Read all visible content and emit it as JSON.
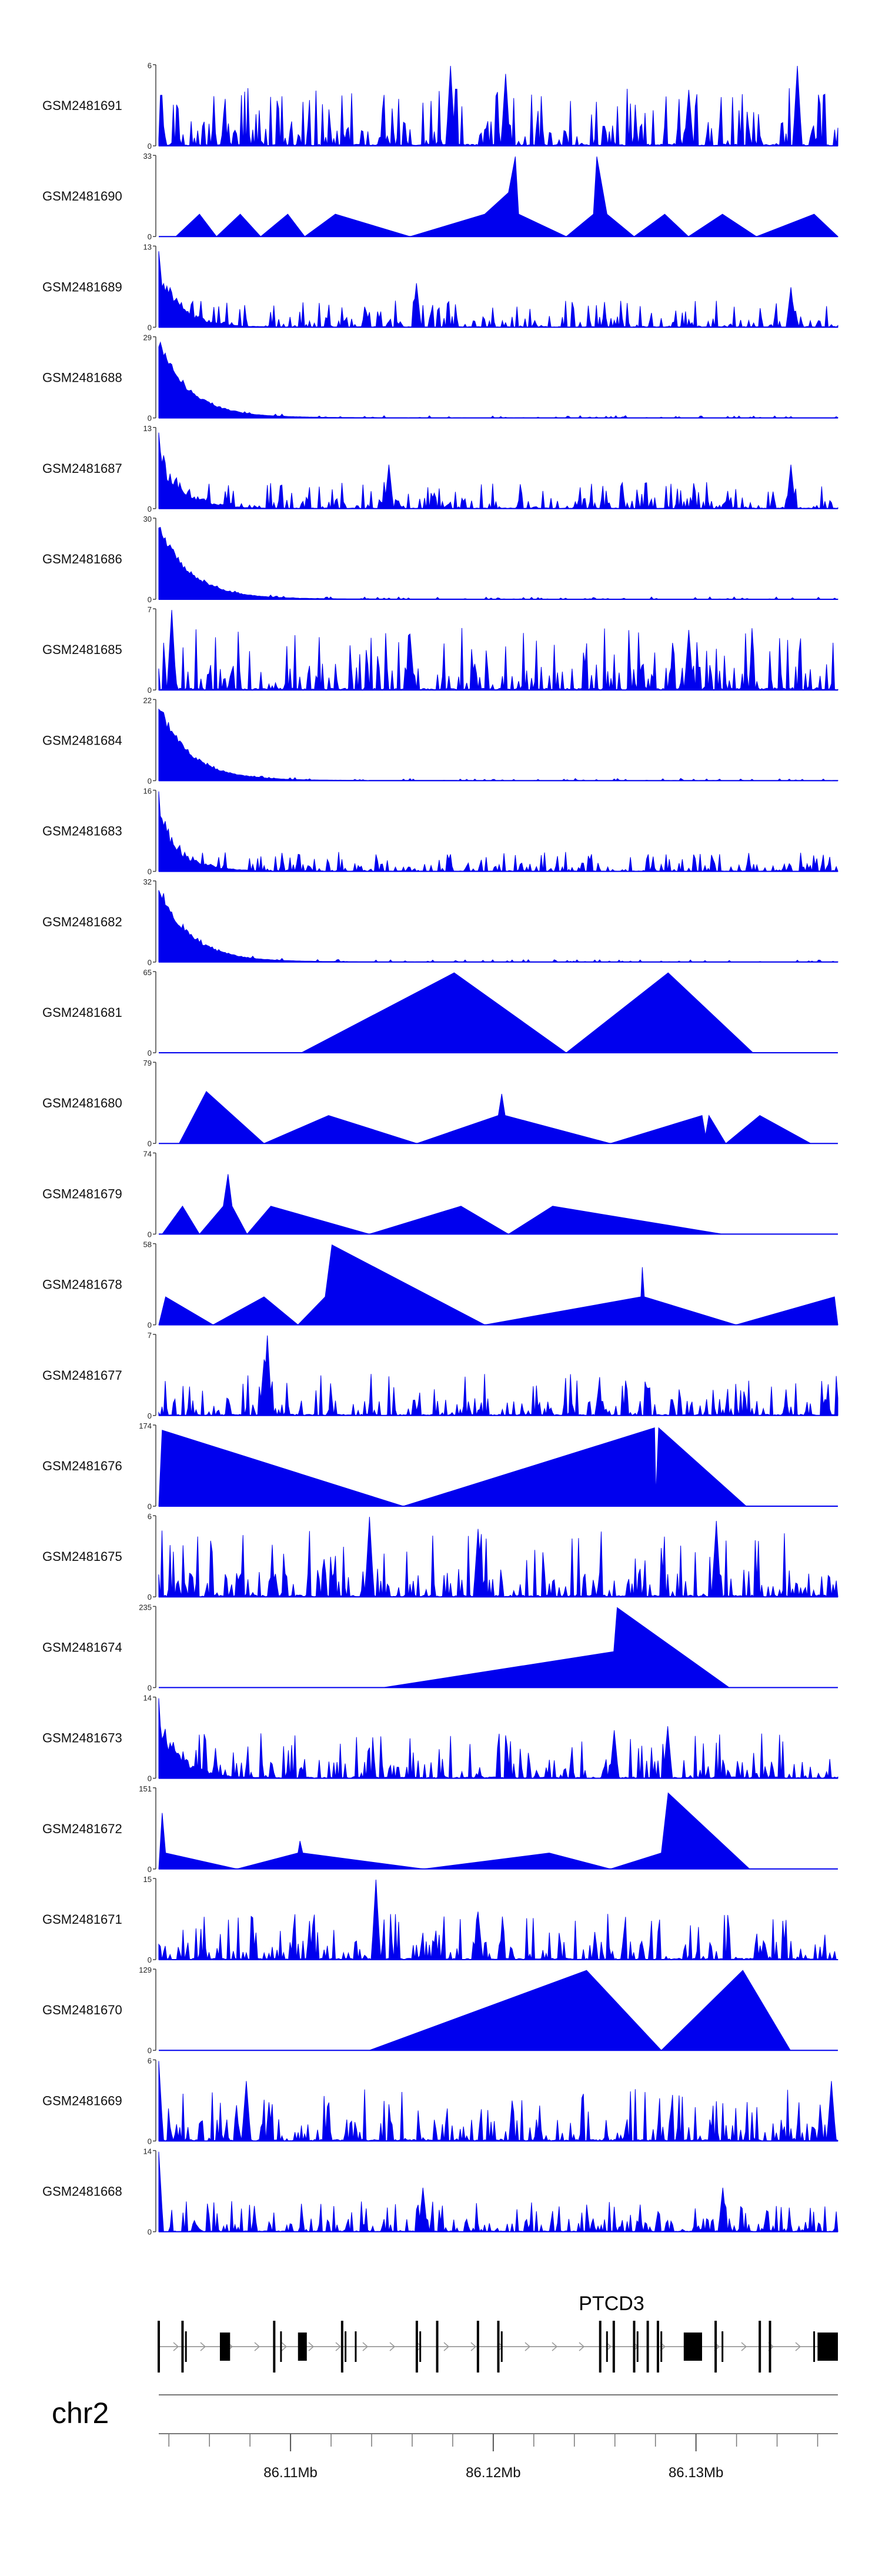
{
  "chart_data": {
    "type": "area",
    "title": "",
    "fill_color": "#0000ee",
    "chromosome": "chr2",
    "gene": "PTCD3",
    "xlim": [
      86.1035,
      86.137
    ],
    "x_unit": "Mb",
    "x_ticks": [
      {
        "value": 86.11,
        "label": "86.11Mb"
      },
      {
        "value": 86.12,
        "label": "86.12Mb"
      },
      {
        "value": 86.13,
        "label": "86.13Mb"
      }
    ],
    "tracks": [
      {
        "name": "GSM2481691",
        "ymax": 6,
        "kind": "dense",
        "seed": 11,
        "base": 0.28,
        "skew": 0.0,
        "mode": "peaks",
        "spikes": [
          [
            0.43,
            1.0
          ],
          [
            0.51,
            0.9
          ],
          [
            0.94,
            1.0
          ],
          [
            0.78,
            0.7
          ]
        ]
      },
      {
        "name": "GSM2481690",
        "ymax": 33,
        "kind": "tri",
        "points": [
          [
            0.025,
            0
          ],
          [
            0.06,
            0.28
          ],
          [
            0.085,
            0
          ],
          [
            0.12,
            0.28
          ],
          [
            0.15,
            0
          ],
          [
            0.19,
            0.28
          ],
          [
            0.215,
            0
          ],
          [
            0.26,
            0.28
          ],
          [
            0.37,
            0
          ],
          [
            0.48,
            0.28
          ],
          [
            0.515,
            0.55
          ],
          [
            0.525,
            1.0
          ],
          [
            0.53,
            0.28
          ],
          [
            0.6,
            0
          ],
          [
            0.64,
            0.28
          ],
          [
            0.645,
            1.0
          ],
          [
            0.66,
            0.28
          ],
          [
            0.7,
            0
          ],
          [
            0.745,
            0.28
          ],
          [
            0.78,
            0
          ],
          [
            0.83,
            0.28
          ],
          [
            0.88,
            0
          ],
          [
            0.965,
            0.28
          ],
          [
            1.0,
            0
          ]
        ]
      },
      {
        "name": "GSM2481689",
        "ymax": 13,
        "kind": "dense",
        "seed": 23,
        "base": 0.16,
        "skew": 0.7,
        "mode": "mixed",
        "spikes": [
          [
            0.0,
            0.95
          ],
          [
            0.38,
            0.55
          ],
          [
            0.93,
            0.5
          ]
        ]
      },
      {
        "name": "GSM2481688",
        "ymax": 29,
        "kind": "dense",
        "seed": 31,
        "base": 0.05,
        "skew": 1.0,
        "mode": "decay",
        "spikes": []
      },
      {
        "name": "GSM2481687",
        "ymax": 13,
        "kind": "dense",
        "seed": 47,
        "base": 0.16,
        "skew": 0.7,
        "mode": "mixed",
        "spikes": [
          [
            0.0,
            0.95
          ],
          [
            0.34,
            0.55
          ],
          [
            0.93,
            0.55
          ]
        ]
      },
      {
        "name": "GSM2481686",
        "ymax": 30,
        "kind": "dense",
        "seed": 53,
        "base": 0.05,
        "skew": 1.0,
        "mode": "decay",
        "spikes": []
      },
      {
        "name": "GSM2481685",
        "ymax": 7,
        "kind": "dense",
        "seed": 61,
        "base": 0.3,
        "skew": 0.0,
        "mode": "peaks",
        "spikes": [
          [
            0.02,
            1.0
          ],
          [
            0.37,
            0.7
          ],
          [
            0.78,
            0.75
          ]
        ]
      },
      {
        "name": "GSM2481684",
        "ymax": 22,
        "kind": "dense",
        "seed": 71,
        "base": 0.03,
        "skew": 1.0,
        "mode": "decay",
        "spikes": []
      },
      {
        "name": "GSM2481683",
        "ymax": 16,
        "kind": "dense",
        "seed": 83,
        "base": 0.12,
        "skew": 0.8,
        "mode": "mixed",
        "spikes": [
          [
            0.0,
            1.0
          ]
        ]
      },
      {
        "name": "GSM2481682",
        "ymax": 32,
        "kind": "dense",
        "seed": 97,
        "base": 0.04,
        "skew": 1.0,
        "mode": "decay",
        "spikes": []
      },
      {
        "name": "GSM2481681",
        "ymax": 65,
        "kind": "tri",
        "points": [
          [
            0.21,
            0
          ],
          [
            0.435,
            1.0
          ],
          [
            0.6,
            0
          ],
          [
            0.75,
            1.0
          ],
          [
            0.875,
            0
          ]
        ]
      },
      {
        "name": "GSM2481680",
        "ymax": 79,
        "kind": "tri",
        "points": [
          [
            0.03,
            0
          ],
          [
            0.07,
            0.65
          ],
          [
            0.155,
            0
          ],
          [
            0.25,
            0.35
          ],
          [
            0.38,
            0
          ],
          [
            0.5,
            0.35
          ],
          [
            0.505,
            0.62
          ],
          [
            0.51,
            0.35
          ],
          [
            0.665,
            0
          ],
          [
            0.8,
            0.35
          ],
          [
            0.805,
            0.1
          ],
          [
            0.81,
            0.35
          ],
          [
            0.835,
            0
          ],
          [
            0.885,
            0.35
          ],
          [
            0.96,
            0
          ]
        ]
      },
      {
        "name": "GSM2481679",
        "ymax": 74,
        "kind": "tri",
        "points": [
          [
            0.005,
            0
          ],
          [
            0.035,
            0.35
          ],
          [
            0.06,
            0
          ],
          [
            0.095,
            0.35
          ],
          [
            0.102,
            0.75
          ],
          [
            0.108,
            0.35
          ],
          [
            0.13,
            0
          ],
          [
            0.165,
            0.35
          ],
          [
            0.31,
            0
          ],
          [
            0.445,
            0.35
          ],
          [
            0.515,
            0
          ],
          [
            0.58,
            0.35
          ],
          [
            0.83,
            0
          ]
        ]
      },
      {
        "name": "GSM2481678",
        "ymax": 58,
        "kind": "tri",
        "points": [
          [
            0.0,
            0
          ],
          [
            0.01,
            0.35
          ],
          [
            0.08,
            0
          ],
          [
            0.155,
            0.35
          ],
          [
            0.205,
            0
          ],
          [
            0.245,
            0.35
          ],
          [
            0.255,
            1.0
          ],
          [
            0.48,
            0
          ],
          [
            0.71,
            0.35
          ],
          [
            0.712,
            0.72
          ],
          [
            0.715,
            0.35
          ],
          [
            0.85,
            0
          ],
          [
            0.995,
            0.35
          ],
          [
            1.0,
            0
          ]
        ]
      },
      {
        "name": "GSM2481677",
        "ymax": 7,
        "kind": "dense",
        "seed": 109,
        "base": 0.2,
        "skew": 0.0,
        "mode": "peaks",
        "spikes": [
          [
            0.16,
            1.0
          ],
          [
            0.155,
            0.7
          ]
        ]
      },
      {
        "name": "GSM2481676",
        "ymax": 174,
        "kind": "tri",
        "points": [
          [
            0.0,
            0
          ],
          [
            0.005,
            0.95
          ],
          [
            0.36,
            0
          ],
          [
            0.73,
            0.98
          ],
          [
            0.732,
            0.15
          ],
          [
            0.736,
            0.98
          ],
          [
            0.865,
            0
          ]
        ]
      },
      {
        "name": "GSM2481675",
        "ymax": 6,
        "kind": "dense",
        "seed": 127,
        "base": 0.32,
        "skew": 0.0,
        "mode": "peaks",
        "spikes": [
          [
            0.31,
            1.0
          ],
          [
            0.47,
            0.85
          ],
          [
            0.82,
            0.95
          ]
        ]
      },
      {
        "name": "GSM2481674",
        "ymax": 235,
        "kind": "tri",
        "points": [
          [
            0.33,
            0
          ],
          [
            0.67,
            0.45
          ],
          [
            0.675,
            1.0
          ],
          [
            0.84,
            0
          ]
        ]
      },
      {
        "name": "GSM2481673",
        "ymax": 14,
        "kind": "dense",
        "seed": 131,
        "base": 0.22,
        "skew": 0.4,
        "mode": "peaks",
        "spikes": [
          [
            0.0,
            1.0
          ],
          [
            0.67,
            0.6
          ],
          [
            0.75,
            0.65
          ]
        ]
      },
      {
        "name": "GSM2481672",
        "ymax": 151,
        "kind": "tri",
        "points": [
          [
            0.0,
            0
          ],
          [
            0.005,
            0.7
          ],
          [
            0.01,
            0.2
          ],
          [
            0.115,
            0
          ],
          [
            0.205,
            0.2
          ],
          [
            0.208,
            0.35
          ],
          [
            0.212,
            0.2
          ],
          [
            0.39,
            0
          ],
          [
            0.575,
            0.2
          ],
          [
            0.665,
            0
          ],
          [
            0.74,
            0.2
          ],
          [
            0.75,
            0.95
          ],
          [
            0.87,
            0
          ]
        ]
      },
      {
        "name": "GSM2481671",
        "ymax": 15,
        "kind": "dense",
        "seed": 149,
        "base": 0.22,
        "skew": 0.0,
        "mode": "peaks",
        "spikes": [
          [
            0.32,
            1.0
          ],
          [
            0.47,
            0.6
          ]
        ]
      },
      {
        "name": "GSM2481670",
        "ymax": 129,
        "kind": "tri",
        "points": [
          [
            0.31,
            0
          ],
          [
            0.63,
            1.0
          ],
          [
            0.74,
            0
          ],
          [
            0.86,
            1.0
          ],
          [
            0.93,
            0
          ]
        ]
      },
      {
        "name": "GSM2481669",
        "ymax": 6,
        "kind": "dense",
        "seed": 163,
        "base": 0.25,
        "skew": 0.0,
        "mode": "peaks",
        "spikes": [
          [
            0.0,
            1.0
          ],
          [
            0.13,
            0.75
          ],
          [
            0.99,
            0.75
          ]
        ]
      },
      {
        "name": "GSM2481668",
        "ymax": 14,
        "kind": "dense",
        "seed": 179,
        "base": 0.15,
        "skew": 0.0,
        "mode": "peaks",
        "spikes": [
          [
            0.0,
            1.0
          ],
          [
            0.39,
            0.55
          ],
          [
            0.83,
            0.55
          ]
        ]
      }
    ],
    "transcript": {
      "exons_major": [
        0.0,
        0.035,
        0.17,
        0.27,
        0.38,
        0.41,
        0.47,
        0.5,
        0.65,
        0.67,
        0.7,
        0.72,
        0.735,
        0.82,
        0.885,
        0.9
      ],
      "blocks": [
        [
          0.09,
          0.105
        ],
        [
          0.205,
          0.218
        ],
        [
          0.773,
          0.8
        ],
        [
          0.97,
          1.0
        ]
      ],
      "exons_minor": [
        0.04,
        0.18,
        0.275,
        0.29,
        0.385,
        0.505,
        0.66,
        0.705,
        0.74,
        0.83,
        0.965
      ]
    }
  }
}
